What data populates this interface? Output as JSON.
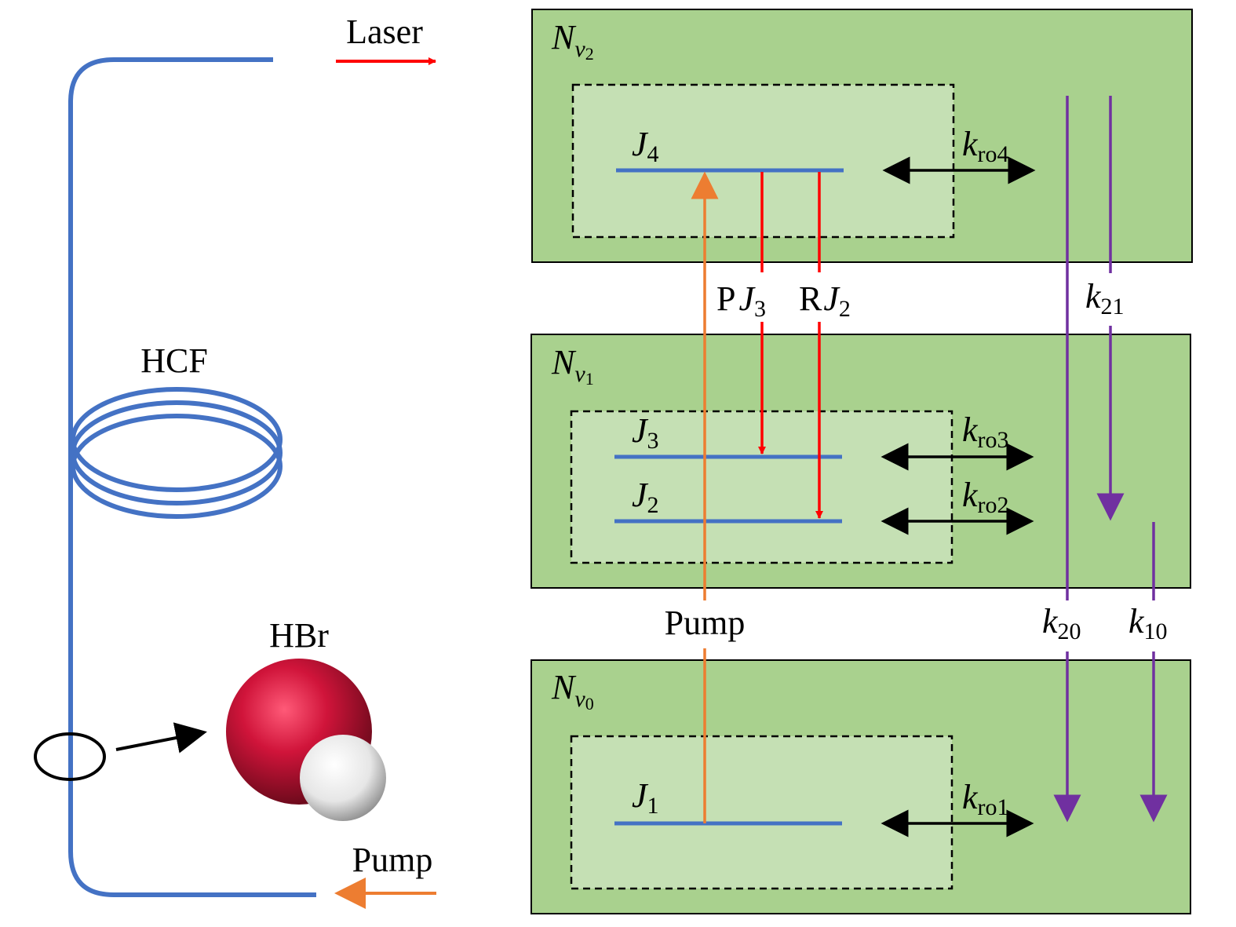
{
  "colors": {
    "fiber": "#4472c4",
    "outer_box": "#a9d18e",
    "inner_box": "#c5e0b4",
    "laser": "#ff0000",
    "pump": "#ed7d31",
    "relaxation": "#7030a0",
    "bromine_atom": "#c8102e",
    "hydrogen_atom": "#f2f2f2"
  },
  "setup": {
    "laser_label": "Laser",
    "pump_label": "Pump",
    "fiber_label": "HCF",
    "molecule_label": "HBr"
  },
  "levels": {
    "v2": {
      "base": "N",
      "sub": "v",
      "subsub": "2"
    },
    "v1": {
      "base": "N",
      "sub": "v",
      "subsub": "1"
    },
    "v0": {
      "base": "N",
      "sub": "v",
      "subsub": "0"
    },
    "j4": {
      "base": "J",
      "sub": "4"
    },
    "j3": {
      "base": "J",
      "sub": "3"
    },
    "j2": {
      "base": "J",
      "sub": "2"
    },
    "j1": {
      "base": "J",
      "sub": "1"
    }
  },
  "rates": {
    "kro4": {
      "base": "k",
      "sub": "ro4"
    },
    "kro3": {
      "base": "k",
      "sub": "ro3"
    },
    "kro2": {
      "base": "k",
      "sub": "ro2"
    },
    "kro1": {
      "base": "k",
      "sub": "ro1"
    },
    "k21": {
      "base": "k",
      "sub": "21"
    },
    "k20": {
      "base": "k",
      "sub": "20"
    },
    "k10": {
      "base": "k",
      "sub": "10"
    }
  },
  "transitions": {
    "pump_label": "Pump",
    "p_branch": {
      "prefix": "P",
      "base": "J",
      "sub": "3"
    },
    "r_branch": {
      "prefix": "R",
      "base": "J",
      "sub": "2"
    }
  }
}
